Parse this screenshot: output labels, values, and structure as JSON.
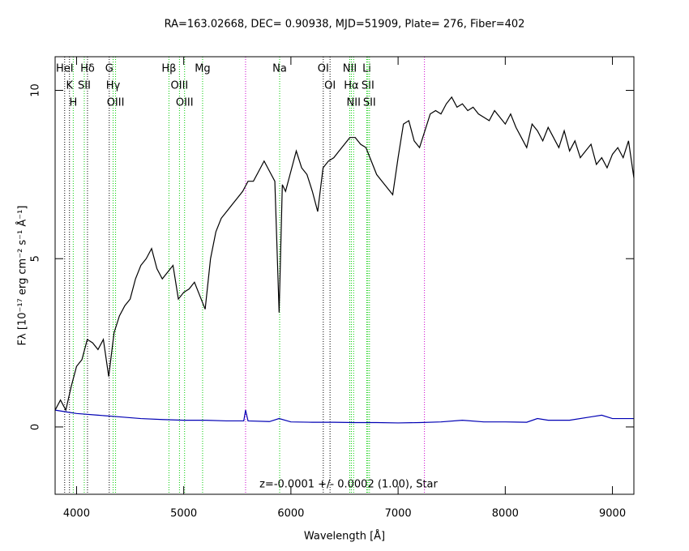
{
  "chart_data": {
    "type": "line",
    "title": "RA=163.02668, DEC= 0.90938, MJD=51909, Plate= 276, Fiber=402",
    "x_label": "Wavelength [Å]",
    "y_label": "Fλ [10⁻¹⁷ erg cm⁻² s⁻¹ Å⁻¹]",
    "annotation": "z=-0.0001 +/- 0.0002 (1.00), Star",
    "xlim": [
      3800,
      9200
    ],
    "ylim": [
      -2,
      11
    ],
    "xticks": [
      4000,
      5000,
      6000,
      7000,
      8000,
      9000
    ],
    "yticks": [
      0,
      5,
      10
    ],
    "series": [
      {
        "color": "#000000",
        "x": [
          3800,
          3850,
          3900,
          3950,
          4000,
          4050,
          4100,
          4150,
          4200,
          4250,
          4300,
          4350,
          4400,
          4450,
          4500,
          4550,
          4600,
          4650,
          4700,
          4750,
          4800,
          4850,
          4900,
          4950,
          5000,
          5050,
          5100,
          5150,
          5200,
          5250,
          5300,
          5350,
          5400,
          5450,
          5500,
          5550,
          5600,
          5650,
          5700,
          5750,
          5800,
          5850,
          5890,
          5920,
          5950,
          6000,
          6050,
          6100,
          6150,
          6200,
          6250,
          6300,
          6350,
          6400,
          6450,
          6500,
          6550,
          6600,
          6650,
          6700,
          6750,
          6800,
          6850,
          6900,
          6950,
          7000,
          7050,
          7100,
          7150,
          7200,
          7250,
          7300,
          7350,
          7400,
          7450,
          7500,
          7550,
          7600,
          7650,
          7700,
          7750,
          7800,
          7850,
          7900,
          7950,
          8000,
          8050,
          8100,
          8150,
          8200,
          8250,
          8300,
          8350,
          8400,
          8450,
          8500,
          8550,
          8600,
          8650,
          8700,
          8750,
          8800,
          8850,
          8900,
          8950,
          9000,
          9050,
          9100,
          9150,
          9200
        ],
        "values": [
          0.5,
          0.8,
          0.5,
          1.2,
          1.8,
          2.0,
          2.6,
          2.5,
          2.3,
          2.6,
          1.5,
          2.8,
          3.3,
          3.6,
          3.8,
          4.4,
          4.8,
          5.0,
          5.3,
          4.7,
          4.4,
          4.6,
          4.8,
          3.8,
          4.0,
          4.1,
          4.3,
          3.9,
          3.5,
          5.0,
          5.8,
          6.2,
          6.4,
          6.6,
          6.8,
          7.0,
          7.3,
          7.3,
          7.6,
          7.9,
          7.6,
          7.3,
          3.4,
          7.2,
          7.0,
          7.6,
          8.2,
          7.7,
          7.5,
          7.0,
          6.4,
          7.7,
          7.9,
          8.0,
          8.2,
          8.4,
          8.6,
          8.6,
          8.4,
          8.3,
          7.9,
          7.5,
          7.3,
          7.1,
          6.9,
          8.0,
          9.0,
          9.1,
          8.5,
          8.3,
          8.8,
          9.3,
          9.4,
          9.3,
          9.6,
          9.8,
          9.5,
          9.6,
          9.4,
          9.5,
          9.3,
          9.2,
          9.1,
          9.4,
          9.2,
          9.0,
          9.3,
          8.9,
          8.6,
          8.3,
          9.0,
          8.8,
          8.5,
          8.9,
          8.6,
          8.3,
          8.8,
          8.2,
          8.5,
          8.0,
          8.2,
          8.4,
          7.8,
          8.0,
          7.7,
          8.1,
          8.3,
          8.0,
          8.5,
          7.4
        ]
      },
      {
        "color": "#0000b4",
        "x": [
          3800,
          3900,
          4000,
          4200,
          4400,
          4600,
          4800,
          5000,
          5200,
          5400,
          5560,
          5577,
          5600,
          5800,
          5890,
          6000,
          6200,
          6400,
          6600,
          6800,
          7000,
          7200,
          7400,
          7600,
          7800,
          8000,
          8200,
          8300,
          8400,
          8600,
          8800,
          8900,
          9000,
          9200
        ],
        "values": [
          0.5,
          0.45,
          0.4,
          0.35,
          0.3,
          0.25,
          0.22,
          0.2,
          0.2,
          0.18,
          0.18,
          0.5,
          0.18,
          0.16,
          0.25,
          0.15,
          0.14,
          0.14,
          0.13,
          0.13,
          0.12,
          0.13,
          0.15,
          0.2,
          0.15,
          0.15,
          0.14,
          0.25,
          0.2,
          0.2,
          0.3,
          0.35,
          0.25,
          0.25
        ]
      }
    ],
    "lines": [
      {
        "label": "HeI",
        "wavelength": 3889,
        "color": "#000000"
      },
      {
        "label": "K",
        "wavelength": 3934,
        "color": "#000000"
      },
      {
        "label": "H",
        "wavelength": 3969,
        "color": "#00cc00"
      },
      {
        "label": "SII",
        "wavelength": 4072,
        "color": "#00cc00"
      },
      {
        "label": "Hδ",
        "wavelength": 4102,
        "color": "#000000"
      },
      {
        "label": "G",
        "wavelength": 4305,
        "color": "#000000"
      },
      {
        "label": "Hγ",
        "wavelength": 4341,
        "color": "#00cc00"
      },
      {
        "label": "OIII",
        "wavelength": 4364,
        "color": "#00cc00"
      },
      {
        "label": "Hβ",
        "wavelength": 4862,
        "color": "#00cc00"
      },
      {
        "label": "OIII",
        "wavelength": 4960,
        "color": "#00cc00"
      },
      {
        "label": "OIII",
        "wavelength": 5008,
        "color": "#00cc00"
      },
      {
        "label": "Mg",
        "wavelength": 5176,
        "color": "#00cc00"
      },
      {
        "label": "Na",
        "wavelength": 5895,
        "color": "#00cc00"
      },
      {
        "label": "OI",
        "wavelength": 6302,
        "color": "#000000"
      },
      {
        "label": "OI",
        "wavelength": 6365,
        "color": "#000000"
      },
      {
        "label": "NII",
        "wavelength": 6549,
        "color": "#00cc00"
      },
      {
        "label": "Hα",
        "wavelength": 6564,
        "color": "#00cc00"
      },
      {
        "label": "NII",
        "wavelength": 6585,
        "color": "#00cc00"
      },
      {
        "label": "Li",
        "wavelength": 6708,
        "color": "#00cc00"
      },
      {
        "label": "SII",
        "wavelength": 6718,
        "color": "#00cc00"
      },
      {
        "label": "SII",
        "wavelength": 6733,
        "color": "#00cc00"
      }
    ],
    "sky_lines": [
      {
        "wavelength": 5577,
        "color": "#cc00cc"
      },
      {
        "wavelength": 7246,
        "color": "#cc00cc"
      }
    ]
  }
}
